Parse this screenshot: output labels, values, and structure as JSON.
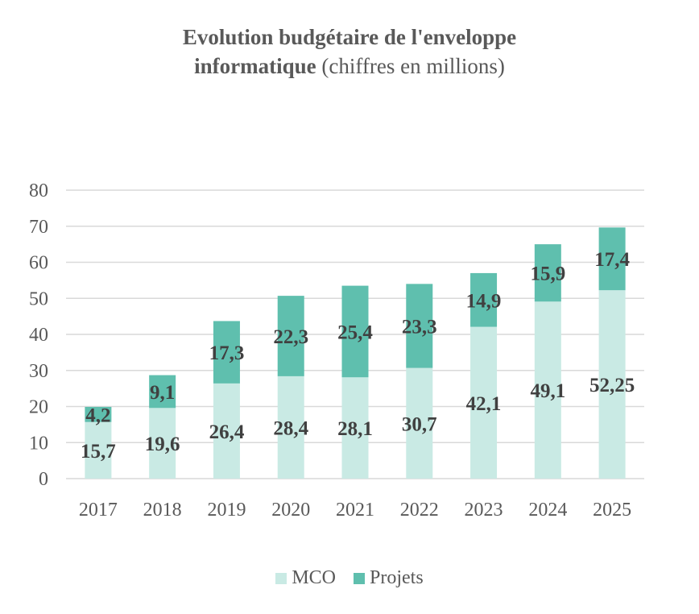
{
  "chart_data": {
    "type": "bar",
    "stacked": true,
    "title_bold": "Evolution budgétaire de l'enveloppe informatique",
    "title_bold_line1": "Evolution budgétaire de l'enveloppe",
    "title_bold_line2": "informatique",
    "title_normal": "(chiffres en millions)",
    "categories": [
      "2017",
      "2018",
      "2019",
      "2020",
      "2021",
      "2022",
      "2023",
      "2024",
      "2025"
    ],
    "series": [
      {
        "name": "MCO",
        "color": "#c9eae4",
        "values": [
          15.7,
          19.6,
          26.4,
          28.4,
          28.1,
          30.7,
          42.1,
          49.1,
          52.25
        ],
        "labels": [
          "15,7",
          "19,6",
          "26,4",
          "28,4",
          "28,1",
          "30,7",
          "42,1",
          "49,1",
          "52,25"
        ]
      },
      {
        "name": "Projets",
        "color": "#5fbfae",
        "values": [
          4.2,
          9.1,
          17.3,
          22.3,
          25.4,
          23.3,
          14.9,
          15.9,
          17.4
        ],
        "labels": [
          "4,2",
          "9,1",
          "17,3",
          "22,3",
          "25,4",
          "23,3",
          "14,9",
          "15,9",
          "17,4"
        ]
      }
    ],
    "ylim": [
      0,
      80
    ],
    "yticks": [
      0,
      10,
      20,
      30,
      40,
      50,
      60,
      70,
      80
    ],
    "grid": true,
    "legend": "bottom"
  }
}
